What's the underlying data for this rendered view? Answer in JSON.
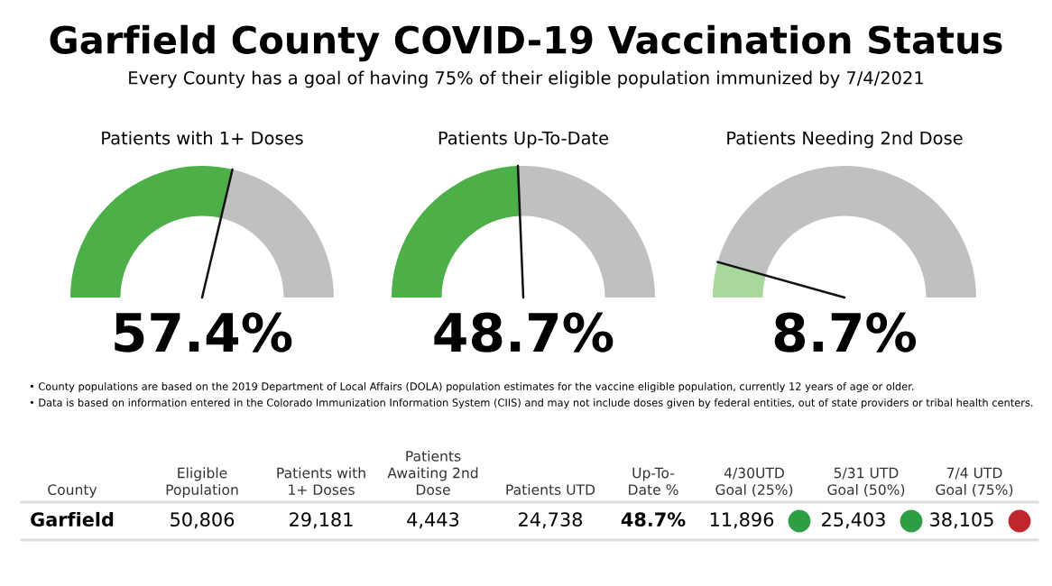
{
  "chart_data": [
    {
      "type": "other",
      "title": "Garfield County COVID-19 Vaccination Status",
      "subtitle": "Every County has a goal of having 75% of their eligible population immunized by 7/4/2021"
    },
    {
      "type": "donut",
      "title": "Patients with 1+ Doses",
      "categories": [
        null,
        null
      ],
      "values": [
        57.4,
        42.6
      ],
      "colors": [
        "#4caf48",
        "#c0c0c0"
      ],
      "annotations": [
        "57.4%"
      ]
    },
    {
      "type": "donut",
      "title": "Patients Up-To-Date",
      "categories": [
        null,
        null
      ],
      "values": [
        48.7,
        51.3
      ],
      "colors": [
        "#4caf48",
        "#c0c0c0"
      ],
      "annotations": [
        "48.7%"
      ]
    },
    {
      "type": "donut",
      "title": "Patients Needing 2nd Dose",
      "categories": [
        null,
        null
      ],
      "values": [
        8.7,
        91.3
      ],
      "colors": [
        "#a8d89c",
        "#c0c0c0"
      ],
      "annotations": [
        "8.7%"
      ]
    },
    {
      "type": "other",
      "annotations": [
        "• County populations are based on the 2019 Department of Local Affairs (DOLA) population estimates for the vaccine eligible population, currently 12 years of age or older.",
        "• Data is based on information entered in the Colorado Immunization Information System (CIIS) and may not include doses given by federal entities, out of state providers or tribal health centers."
      ],
      "categories": [
        "County",
        "Eligible\nPopulation",
        "Patients with\n1+ Doses",
        "Patients\nAwaiting 2nd\nDose",
        "Patients UTD",
        "Up-To-\nDate %",
        "4/30UTD\nGoal (25%)",
        "5/31 UTD\nGoal (50%)",
        "7/4 UTD\nGoal (75%)"
      ],
      "cell_labels": [
        [
          "Garfield",
          "50,806",
          "29,181",
          "4,443",
          "24,738",
          "48.7%",
          "11,896",
          "25,403",
          "38,105"
        ]
      ],
      "colors": [
        null,
        null,
        null,
        null,
        null,
        null,
        "#2e9e44",
        "#2e9e44",
        "#c0272d"
      ]
    }
  ]
}
